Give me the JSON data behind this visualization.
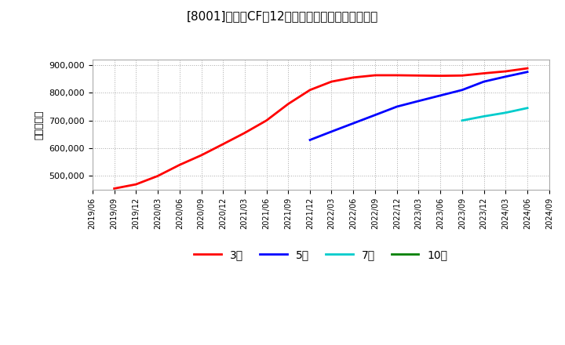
{
  "title": "[8001]　営業CFの12か月移動合計の平均値の推移",
  "ylabel": "（百万円）",
  "ylim": [
    450000,
    920000
  ],
  "yticks": [
    500000,
    600000,
    700000,
    800000,
    900000
  ],
  "background_color": "#ffffff",
  "plot_bg_color": "#ffffff",
  "grid_color": "#aaaaaa",
  "series": {
    "3year": {
      "label": "3年",
      "color": "#ff0000",
      "dates": [
        "2019-09",
        "2019-12",
        "2020-03",
        "2020-06",
        "2020-09",
        "2020-12",
        "2021-03",
        "2021-06",
        "2021-09",
        "2021-12",
        "2022-03",
        "2022-06",
        "2022-09",
        "2022-12",
        "2023-03",
        "2023-06",
        "2023-09",
        "2023-12",
        "2024-03",
        "2024-06"
      ],
      "values": [
        455000,
        470000,
        500000,
        540000,
        575000,
        615000,
        655000,
        700000,
        760000,
        810000,
        840000,
        855000,
        863000,
        863000,
        862000,
        861000,
        862000,
        870000,
        877000,
        888000
      ]
    },
    "5year": {
      "label": "5年",
      "color": "#0000ff",
      "dates": [
        "2021-12",
        "2022-03",
        "2022-06",
        "2022-09",
        "2022-12",
        "2023-03",
        "2023-06",
        "2023-09",
        "2023-12",
        "2024-03",
        "2024-06"
      ],
      "values": [
        630000,
        660000,
        690000,
        720000,
        750000,
        770000,
        790000,
        810000,
        840000,
        858000,
        875000
      ]
    },
    "7year": {
      "label": "7年",
      "color": "#00cccc",
      "dates": [
        "2023-09",
        "2023-12",
        "2024-03",
        "2024-06"
      ],
      "values": [
        700000,
        715000,
        728000,
        745000
      ]
    },
    "10year": {
      "label": "10年",
      "color": "#008000",
      "dates": [],
      "values": []
    }
  },
  "xmin": "2019-06",
  "xmax": "2024-09",
  "xtick_dates": [
    "2019/06",
    "2019/09",
    "2019/12",
    "2020/03",
    "2020/06",
    "2020/09",
    "2020/12",
    "2021/03",
    "2021/06",
    "2021/09",
    "2021/12",
    "2022/03",
    "2022/06",
    "2022/09",
    "2022/12",
    "2023/03",
    "2023/06",
    "2023/09",
    "2023/12",
    "2024/03",
    "2024/06",
    "2024/09"
  ],
  "legend_labels": [
    "3年",
    "5年",
    "7年",
    "10年"
  ],
  "legend_colors": [
    "#ff0000",
    "#0000ff",
    "#00cccc",
    "#008000"
  ]
}
